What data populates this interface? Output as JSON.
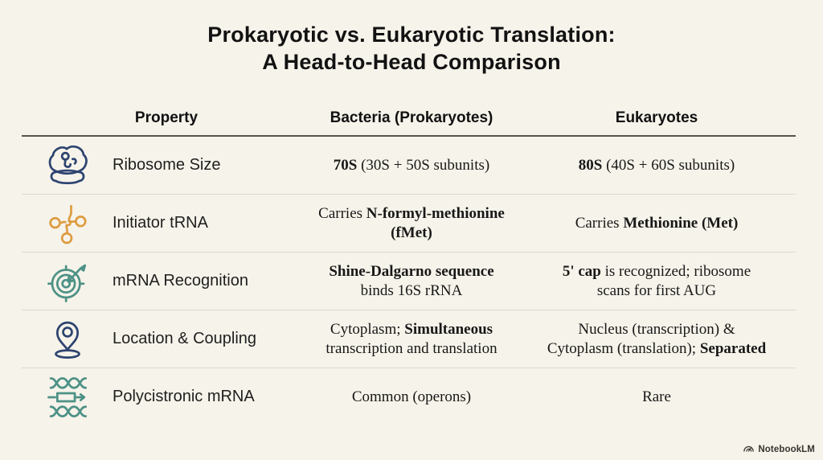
{
  "title": "Prokaryotic vs. Eukaryotic Translation:\nA Head-to-Head Comparison",
  "colors": {
    "background": "#f6f3ea",
    "navy": "#2e4470",
    "orange": "#dd9c42",
    "teal": "#4d9186",
    "header_rule": "#54534d",
    "row_rule": "#dcd8cc"
  },
  "table": {
    "headers": [
      "Property",
      "Bacteria (Prokaryotes)",
      "Eukaryotes"
    ],
    "rows": [
      {
        "icon": "ribosome-icon",
        "property": "Ribosome Size",
        "bacteria": [
          [
            {
              "text": "70S",
              "bold": true
            },
            {
              "text": " (30S + 50S subunits)",
              "bold": false
            }
          ]
        ],
        "eukaryotes": [
          [
            {
              "text": "80S",
              "bold": true
            },
            {
              "text": " (40S + 60S subunits)",
              "bold": false
            }
          ]
        ]
      },
      {
        "icon": "trna-icon",
        "property": "Initiator tRNA",
        "bacteria": [
          [
            {
              "text": "Carries ",
              "bold": false
            },
            {
              "text": "N-formyl-methionine",
              "bold": true
            }
          ],
          [
            {
              "text": "(fMet)",
              "bold": true
            }
          ]
        ],
        "eukaryotes": [
          [
            {
              "text": "Carries ",
              "bold": false
            },
            {
              "text": "Methionine (Met)",
              "bold": true
            }
          ]
        ]
      },
      {
        "icon": "target-icon",
        "property": "mRNA Recognition",
        "bacteria": [
          [
            {
              "text": "Shine-Dalgarno sequence",
              "bold": true
            }
          ],
          [
            {
              "text": "binds 16S rRNA",
              "bold": false
            }
          ]
        ],
        "eukaryotes": [
          [
            {
              "text": "5' cap",
              "bold": true
            },
            {
              "text": " is recognized; ribosome",
              "bold": false
            }
          ],
          [
            {
              "text": "scans for first AUG",
              "bold": false
            }
          ]
        ]
      },
      {
        "icon": "location-pin-icon",
        "property": "Location & Coupling",
        "bacteria": [
          [
            {
              "text": "Cytoplasm; ",
              "bold": false
            },
            {
              "text": "Simultaneous",
              "bold": true
            }
          ],
          [
            {
              "text": "transcription and translation",
              "bold": false
            }
          ]
        ],
        "eukaryotes": [
          [
            {
              "text": "Nucleus (transcription) &",
              "bold": false
            }
          ],
          [
            {
              "text": "Cytoplasm (translation); ",
              "bold": false
            },
            {
              "text": "Separated",
              "bold": true
            }
          ]
        ]
      },
      {
        "icon": "dna-operon-icon",
        "property": "Polycistronic mRNA",
        "bacteria": [
          [
            {
              "text": "Common (operons)",
              "bold": false
            }
          ]
        ],
        "eukaryotes": [
          [
            {
              "text": "Rare",
              "bold": false
            }
          ]
        ]
      }
    ]
  },
  "footer": {
    "brand": "NotebookLM"
  },
  "chart_data": {
    "type": "table",
    "title": "Prokaryotic vs. Eukaryotic Translation: A Head-to-Head Comparison",
    "columns": [
      "Property",
      "Bacteria (Prokaryotes)",
      "Eukaryotes"
    ],
    "rows": [
      [
        "Ribosome Size",
        "70S (30S + 50S subunits)",
        "80S (40S + 60S subunits)"
      ],
      [
        "Initiator tRNA",
        "Carries N-formyl-methionine (fMet)",
        "Carries Methionine (Met)"
      ],
      [
        "mRNA Recognition",
        "Shine-Dalgarno sequence binds 16S rRNA",
        "5' cap is recognized; ribosome scans for first AUG"
      ],
      [
        "Location & Coupling",
        "Cytoplasm; Simultaneous transcription and translation",
        "Nucleus (transcription) & Cytoplasm (translation); Separated"
      ],
      [
        "Polycistronic mRNA",
        "Common (operons)",
        "Rare"
      ]
    ]
  }
}
